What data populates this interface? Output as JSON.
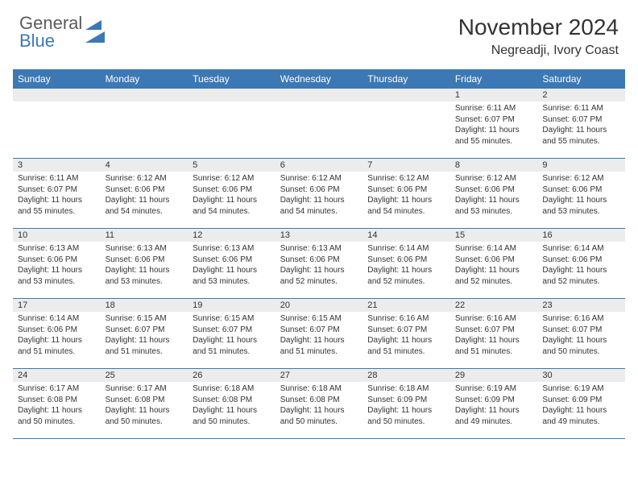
{
  "brand": {
    "word1": "General",
    "word2": "Blue"
  },
  "title": "November 2024",
  "location": "Negreadji, Ivory Coast",
  "colors": {
    "header_bg": "#3c78b4",
    "daynum_bg": "#ececec",
    "text": "#333333",
    "border": "#3c78b4"
  },
  "day_names": [
    "Sunday",
    "Monday",
    "Tuesday",
    "Wednesday",
    "Thursday",
    "Friday",
    "Saturday"
  ],
  "weeks": [
    [
      {
        "n": "",
        "sr": "",
        "ss": "",
        "dl": ""
      },
      {
        "n": "",
        "sr": "",
        "ss": "",
        "dl": ""
      },
      {
        "n": "",
        "sr": "",
        "ss": "",
        "dl": ""
      },
      {
        "n": "",
        "sr": "",
        "ss": "",
        "dl": ""
      },
      {
        "n": "",
        "sr": "",
        "ss": "",
        "dl": ""
      },
      {
        "n": "1",
        "sr": "Sunrise: 6:11 AM",
        "ss": "Sunset: 6:07 PM",
        "dl": "Daylight: 11 hours and 55 minutes."
      },
      {
        "n": "2",
        "sr": "Sunrise: 6:11 AM",
        "ss": "Sunset: 6:07 PM",
        "dl": "Daylight: 11 hours and 55 minutes."
      }
    ],
    [
      {
        "n": "3",
        "sr": "Sunrise: 6:11 AM",
        "ss": "Sunset: 6:07 PM",
        "dl": "Daylight: 11 hours and 55 minutes."
      },
      {
        "n": "4",
        "sr": "Sunrise: 6:12 AM",
        "ss": "Sunset: 6:06 PM",
        "dl": "Daylight: 11 hours and 54 minutes."
      },
      {
        "n": "5",
        "sr": "Sunrise: 6:12 AM",
        "ss": "Sunset: 6:06 PM",
        "dl": "Daylight: 11 hours and 54 minutes."
      },
      {
        "n": "6",
        "sr": "Sunrise: 6:12 AM",
        "ss": "Sunset: 6:06 PM",
        "dl": "Daylight: 11 hours and 54 minutes."
      },
      {
        "n": "7",
        "sr": "Sunrise: 6:12 AM",
        "ss": "Sunset: 6:06 PM",
        "dl": "Daylight: 11 hours and 54 minutes."
      },
      {
        "n": "8",
        "sr": "Sunrise: 6:12 AM",
        "ss": "Sunset: 6:06 PM",
        "dl": "Daylight: 11 hours and 53 minutes."
      },
      {
        "n": "9",
        "sr": "Sunrise: 6:12 AM",
        "ss": "Sunset: 6:06 PM",
        "dl": "Daylight: 11 hours and 53 minutes."
      }
    ],
    [
      {
        "n": "10",
        "sr": "Sunrise: 6:13 AM",
        "ss": "Sunset: 6:06 PM",
        "dl": "Daylight: 11 hours and 53 minutes."
      },
      {
        "n": "11",
        "sr": "Sunrise: 6:13 AM",
        "ss": "Sunset: 6:06 PM",
        "dl": "Daylight: 11 hours and 53 minutes."
      },
      {
        "n": "12",
        "sr": "Sunrise: 6:13 AM",
        "ss": "Sunset: 6:06 PM",
        "dl": "Daylight: 11 hours and 53 minutes."
      },
      {
        "n": "13",
        "sr": "Sunrise: 6:13 AM",
        "ss": "Sunset: 6:06 PM",
        "dl": "Daylight: 11 hours and 52 minutes."
      },
      {
        "n": "14",
        "sr": "Sunrise: 6:14 AM",
        "ss": "Sunset: 6:06 PM",
        "dl": "Daylight: 11 hours and 52 minutes."
      },
      {
        "n": "15",
        "sr": "Sunrise: 6:14 AM",
        "ss": "Sunset: 6:06 PM",
        "dl": "Daylight: 11 hours and 52 minutes."
      },
      {
        "n": "16",
        "sr": "Sunrise: 6:14 AM",
        "ss": "Sunset: 6:06 PM",
        "dl": "Daylight: 11 hours and 52 minutes."
      }
    ],
    [
      {
        "n": "17",
        "sr": "Sunrise: 6:14 AM",
        "ss": "Sunset: 6:06 PM",
        "dl": "Daylight: 11 hours and 51 minutes."
      },
      {
        "n": "18",
        "sr": "Sunrise: 6:15 AM",
        "ss": "Sunset: 6:07 PM",
        "dl": "Daylight: 11 hours and 51 minutes."
      },
      {
        "n": "19",
        "sr": "Sunrise: 6:15 AM",
        "ss": "Sunset: 6:07 PM",
        "dl": "Daylight: 11 hours and 51 minutes."
      },
      {
        "n": "20",
        "sr": "Sunrise: 6:15 AM",
        "ss": "Sunset: 6:07 PM",
        "dl": "Daylight: 11 hours and 51 minutes."
      },
      {
        "n": "21",
        "sr": "Sunrise: 6:16 AM",
        "ss": "Sunset: 6:07 PM",
        "dl": "Daylight: 11 hours and 51 minutes."
      },
      {
        "n": "22",
        "sr": "Sunrise: 6:16 AM",
        "ss": "Sunset: 6:07 PM",
        "dl": "Daylight: 11 hours and 51 minutes."
      },
      {
        "n": "23",
        "sr": "Sunrise: 6:16 AM",
        "ss": "Sunset: 6:07 PM",
        "dl": "Daylight: 11 hours and 50 minutes."
      }
    ],
    [
      {
        "n": "24",
        "sr": "Sunrise: 6:17 AM",
        "ss": "Sunset: 6:08 PM",
        "dl": "Daylight: 11 hours and 50 minutes."
      },
      {
        "n": "25",
        "sr": "Sunrise: 6:17 AM",
        "ss": "Sunset: 6:08 PM",
        "dl": "Daylight: 11 hours and 50 minutes."
      },
      {
        "n": "26",
        "sr": "Sunrise: 6:18 AM",
        "ss": "Sunset: 6:08 PM",
        "dl": "Daylight: 11 hours and 50 minutes."
      },
      {
        "n": "27",
        "sr": "Sunrise: 6:18 AM",
        "ss": "Sunset: 6:08 PM",
        "dl": "Daylight: 11 hours and 50 minutes."
      },
      {
        "n": "28",
        "sr": "Sunrise: 6:18 AM",
        "ss": "Sunset: 6:09 PM",
        "dl": "Daylight: 11 hours and 50 minutes."
      },
      {
        "n": "29",
        "sr": "Sunrise: 6:19 AM",
        "ss": "Sunset: 6:09 PM",
        "dl": "Daylight: 11 hours and 49 minutes."
      },
      {
        "n": "30",
        "sr": "Sunrise: 6:19 AM",
        "ss": "Sunset: 6:09 PM",
        "dl": "Daylight: 11 hours and 49 minutes."
      }
    ]
  ]
}
